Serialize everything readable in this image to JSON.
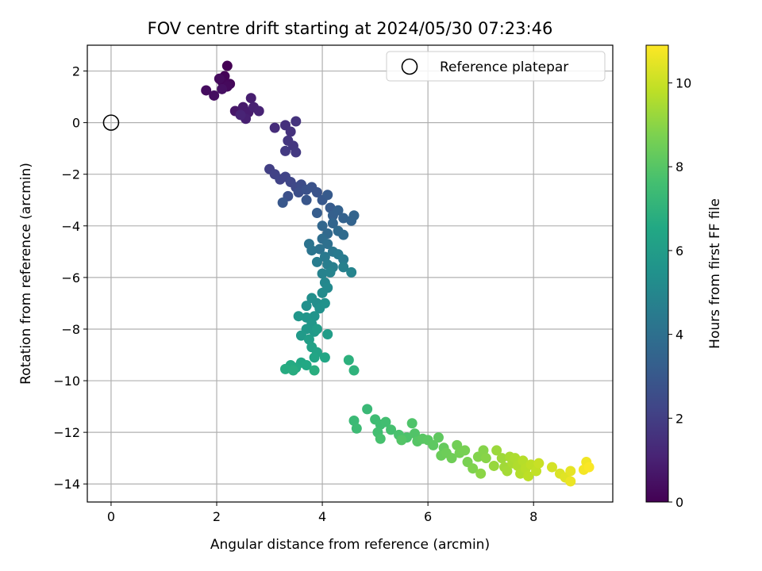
{
  "chart_data": {
    "type": "scatter",
    "title": "FOV centre drift starting at 2024/05/30 07:23:46",
    "xlabel": "Angular distance from reference (arcmin)",
    "ylabel": "Rotation from reference (arcmin)",
    "xlim": [
      -0.45,
      9.5
    ],
    "ylim": [
      -14.7,
      3.0
    ],
    "xticks": [
      0,
      2,
      4,
      6,
      8
    ],
    "yticks": [
      2,
      0,
      -2,
      -4,
      -6,
      -8,
      -10,
      -12,
      -14
    ],
    "grid": true,
    "legend": {
      "placement": "top-right",
      "entries": [
        "Reference platepar"
      ]
    },
    "reference_point": {
      "x": 0,
      "y": 0,
      "marker": "open-circle",
      "label": "Reference platepar"
    },
    "colorbar": {
      "label": "Hours from first FF file",
      "colormap": "viridis",
      "range": [
        0,
        10.9
      ],
      "ticks": [
        0,
        2,
        4,
        6,
        8,
        10
      ]
    },
    "points": [
      {
        "x": 2.2,
        "y": 2.2,
        "c": 0.0
      },
      {
        "x": 2.15,
        "y": 1.8,
        "c": 0.1
      },
      {
        "x": 2.1,
        "y": 1.6,
        "c": 0.15
      },
      {
        "x": 2.25,
        "y": 1.5,
        "c": 0.2
      },
      {
        "x": 2.2,
        "y": 1.4,
        "c": 0.25
      },
      {
        "x": 2.05,
        "y": 1.7,
        "c": 0.3
      },
      {
        "x": 1.8,
        "y": 1.25,
        "c": 0.35
      },
      {
        "x": 1.95,
        "y": 1.05,
        "c": 0.4
      },
      {
        "x": 2.1,
        "y": 1.3,
        "c": 0.45
      },
      {
        "x": 2.35,
        "y": 0.45,
        "c": 0.7
      },
      {
        "x": 2.5,
        "y": 0.6,
        "c": 0.8
      },
      {
        "x": 2.6,
        "y": 0.4,
        "c": 0.85
      },
      {
        "x": 2.65,
        "y": 0.95,
        "c": 0.9
      },
      {
        "x": 2.55,
        "y": 0.15,
        "c": 0.95
      },
      {
        "x": 2.7,
        "y": 0.6,
        "c": 1.0
      },
      {
        "x": 2.8,
        "y": 0.45,
        "c": 1.05
      },
      {
        "x": 2.45,
        "y": 0.3,
        "c": 1.1
      },
      {
        "x": 3.1,
        "y": -0.2,
        "c": 1.4
      },
      {
        "x": 3.3,
        "y": -0.1,
        "c": 1.5
      },
      {
        "x": 3.4,
        "y": -0.35,
        "c": 1.55
      },
      {
        "x": 3.5,
        "y": 0.05,
        "c": 1.6
      },
      {
        "x": 3.35,
        "y": -0.7,
        "c": 1.7
      },
      {
        "x": 3.45,
        "y": -0.9,
        "c": 1.75
      },
      {
        "x": 3.5,
        "y": -1.15,
        "c": 1.8
      },
      {
        "x": 3.3,
        "y": -1.1,
        "c": 1.85
      },
      {
        "x": 3.0,
        "y": -1.8,
        "c": 2.0
      },
      {
        "x": 3.1,
        "y": -2.0,
        "c": 2.1
      },
      {
        "x": 3.2,
        "y": -2.2,
        "c": 2.15
      },
      {
        "x": 3.3,
        "y": -2.1,
        "c": 2.2
      },
      {
        "x": 3.4,
        "y": -2.3,
        "c": 2.3
      },
      {
        "x": 3.5,
        "y": -2.5,
        "c": 2.4
      },
      {
        "x": 3.6,
        "y": -2.4,
        "c": 2.5
      },
      {
        "x": 3.55,
        "y": -2.7,
        "c": 2.6
      },
      {
        "x": 3.35,
        "y": -2.85,
        "c": 2.65
      },
      {
        "x": 3.7,
        "y": -2.6,
        "c": 2.7
      },
      {
        "x": 3.8,
        "y": -2.5,
        "c": 2.75
      },
      {
        "x": 3.9,
        "y": -2.7,
        "c": 2.8
      },
      {
        "x": 3.7,
        "y": -3.0,
        "c": 2.9
      },
      {
        "x": 3.25,
        "y": -3.1,
        "c": 2.95
      },
      {
        "x": 4.0,
        "y": -3.0,
        "c": 3.0
      },
      {
        "x": 4.1,
        "y": -2.8,
        "c": 3.05
      },
      {
        "x": 4.15,
        "y": -3.3,
        "c": 3.1
      },
      {
        "x": 3.9,
        "y": -3.5,
        "c": 3.2
      },
      {
        "x": 4.2,
        "y": -3.6,
        "c": 3.3
      },
      {
        "x": 4.3,
        "y": -3.4,
        "c": 3.35
      },
      {
        "x": 4.4,
        "y": -3.7,
        "c": 3.4
      },
      {
        "x": 4.55,
        "y": -3.8,
        "c": 3.45
      },
      {
        "x": 4.6,
        "y": -3.6,
        "c": 3.5
      },
      {
        "x": 4.2,
        "y": -3.9,
        "c": 3.55
      },
      {
        "x": 4.0,
        "y": -4.0,
        "c": 3.6
      },
      {
        "x": 4.1,
        "y": -4.3,
        "c": 3.7
      },
      {
        "x": 4.3,
        "y": -4.2,
        "c": 3.75
      },
      {
        "x": 4.4,
        "y": -4.35,
        "c": 3.8
      },
      {
        "x": 4.0,
        "y": -4.5,
        "c": 3.9
      },
      {
        "x": 4.1,
        "y": -4.7,
        "c": 4.0
      },
      {
        "x": 3.95,
        "y": -4.9,
        "c": 4.1
      },
      {
        "x": 3.75,
        "y": -4.7,
        "c": 4.15
      },
      {
        "x": 3.8,
        "y": -4.95,
        "c": 4.2
      },
      {
        "x": 4.2,
        "y": -5.0,
        "c": 4.3
      },
      {
        "x": 4.05,
        "y": -5.2,
        "c": 4.4
      },
      {
        "x": 4.3,
        "y": -5.1,
        "c": 4.45
      },
      {
        "x": 4.4,
        "y": -5.3,
        "c": 4.5
      },
      {
        "x": 3.9,
        "y": -5.4,
        "c": 4.55
      },
      {
        "x": 4.1,
        "y": -5.5,
        "c": 4.6
      },
      {
        "x": 4.2,
        "y": -5.6,
        "c": 4.65
      },
      {
        "x": 4.4,
        "y": -5.6,
        "c": 4.7
      },
      {
        "x": 4.0,
        "y": -5.85,
        "c": 4.8
      },
      {
        "x": 4.15,
        "y": -5.8,
        "c": 4.85
      },
      {
        "x": 4.55,
        "y": -5.8,
        "c": 4.9
      },
      {
        "x": 4.05,
        "y": -6.2,
        "c": 5.0
      },
      {
        "x": 4.1,
        "y": -6.4,
        "c": 5.1
      },
      {
        "x": 4.0,
        "y": -6.6,
        "c": 5.2
      },
      {
        "x": 3.9,
        "y": -7.0,
        "c": 5.3
      },
      {
        "x": 3.8,
        "y": -6.8,
        "c": 5.35
      },
      {
        "x": 3.7,
        "y": -7.1,
        "c": 5.4
      },
      {
        "x": 3.95,
        "y": -7.2,
        "c": 5.45
      },
      {
        "x": 4.05,
        "y": -7.0,
        "c": 5.5
      },
      {
        "x": 3.85,
        "y": -7.5,
        "c": 5.6
      },
      {
        "x": 3.7,
        "y": -7.55,
        "c": 5.65
      },
      {
        "x": 3.55,
        "y": -7.5,
        "c": 5.7
      },
      {
        "x": 3.8,
        "y": -7.8,
        "c": 5.75
      },
      {
        "x": 3.7,
        "y": -8.0,
        "c": 5.8
      },
      {
        "x": 3.85,
        "y": -8.1,
        "c": 5.85
      },
      {
        "x": 3.6,
        "y": -8.25,
        "c": 5.9
      },
      {
        "x": 3.9,
        "y": -8.0,
        "c": 5.95
      },
      {
        "x": 4.1,
        "y": -8.2,
        "c": 6.0
      },
      {
        "x": 3.75,
        "y": -8.4,
        "c": 6.05
      },
      {
        "x": 3.8,
        "y": -8.7,
        "c": 6.2
      },
      {
        "x": 3.9,
        "y": -8.9,
        "c": 6.3
      },
      {
        "x": 3.85,
        "y": -9.1,
        "c": 6.4
      },
      {
        "x": 4.05,
        "y": -9.1,
        "c": 6.45
      },
      {
        "x": 3.6,
        "y": -9.3,
        "c": 6.5
      },
      {
        "x": 3.7,
        "y": -9.4,
        "c": 6.55
      },
      {
        "x": 3.5,
        "y": -9.5,
        "c": 6.6
      },
      {
        "x": 3.4,
        "y": -9.4,
        "c": 6.65
      },
      {
        "x": 3.3,
        "y": -9.55,
        "c": 6.7
      },
      {
        "x": 3.45,
        "y": -9.6,
        "c": 6.75
      },
      {
        "x": 3.85,
        "y": -9.6,
        "c": 6.8
      },
      {
        "x": 4.5,
        "y": -9.2,
        "c": 6.9
      },
      {
        "x": 4.6,
        "y": -9.6,
        "c": 7.0
      },
      {
        "x": 4.85,
        "y": -11.1,
        "c": 7.3
      },
      {
        "x": 4.6,
        "y": -11.55,
        "c": 7.35
      },
      {
        "x": 4.65,
        "y": -11.85,
        "c": 7.4
      },
      {
        "x": 5.0,
        "y": -11.5,
        "c": 7.45
      },
      {
        "x": 5.1,
        "y": -11.7,
        "c": 7.5
      },
      {
        "x": 5.2,
        "y": -11.6,
        "c": 7.55
      },
      {
        "x": 5.05,
        "y": -12.0,
        "c": 7.6
      },
      {
        "x": 5.3,
        "y": -11.9,
        "c": 7.65
      },
      {
        "x": 5.1,
        "y": -12.25,
        "c": 7.7
      },
      {
        "x": 5.45,
        "y": -12.1,
        "c": 7.75
      },
      {
        "x": 5.6,
        "y": -12.2,
        "c": 7.8
      },
      {
        "x": 5.7,
        "y": -11.65,
        "c": 7.85
      },
      {
        "x": 5.75,
        "y": -12.05,
        "c": 7.9
      },
      {
        "x": 5.5,
        "y": -12.3,
        "c": 7.95
      },
      {
        "x": 5.8,
        "y": -12.35,
        "c": 8.0
      },
      {
        "x": 5.9,
        "y": -12.25,
        "c": 8.05
      },
      {
        "x": 6.0,
        "y": -12.3,
        "c": 8.1
      },
      {
        "x": 6.1,
        "y": -12.5,
        "c": 8.15
      },
      {
        "x": 6.2,
        "y": -12.2,
        "c": 8.2
      },
      {
        "x": 6.3,
        "y": -12.6,
        "c": 8.3
      },
      {
        "x": 6.25,
        "y": -12.9,
        "c": 8.4
      },
      {
        "x": 6.35,
        "y": -12.8,
        "c": 8.45
      },
      {
        "x": 6.45,
        "y": -13.0,
        "c": 8.5
      },
      {
        "x": 6.55,
        "y": -12.5,
        "c": 8.55
      },
      {
        "x": 6.6,
        "y": -12.8,
        "c": 8.6
      },
      {
        "x": 6.7,
        "y": -12.7,
        "c": 8.65
      },
      {
        "x": 6.75,
        "y": -13.15,
        "c": 8.7
      },
      {
        "x": 6.85,
        "y": -13.4,
        "c": 8.8
      },
      {
        "x": 6.95,
        "y": -12.95,
        "c": 8.85
      },
      {
        "x": 7.05,
        "y": -12.7,
        "c": 8.9
      },
      {
        "x": 7.1,
        "y": -13.0,
        "c": 8.95
      },
      {
        "x": 7.0,
        "y": -13.6,
        "c": 9.0
      },
      {
        "x": 7.25,
        "y": -13.3,
        "c": 9.2
      },
      {
        "x": 7.3,
        "y": -12.7,
        "c": 9.25
      },
      {
        "x": 7.4,
        "y": -13.0,
        "c": 9.3
      },
      {
        "x": 7.45,
        "y": -13.35,
        "c": 9.35
      },
      {
        "x": 7.5,
        "y": -13.5,
        "c": 9.4
      },
      {
        "x": 7.55,
        "y": -12.95,
        "c": 9.45
      },
      {
        "x": 7.6,
        "y": -13.2,
        "c": 9.5
      },
      {
        "x": 7.65,
        "y": -13.0,
        "c": 9.55
      },
      {
        "x": 7.7,
        "y": -13.3,
        "c": 9.6
      },
      {
        "x": 7.75,
        "y": -13.6,
        "c": 9.65
      },
      {
        "x": 7.8,
        "y": -13.1,
        "c": 9.7
      },
      {
        "x": 7.85,
        "y": -13.4,
        "c": 9.75
      },
      {
        "x": 7.9,
        "y": -13.7,
        "c": 9.8
      },
      {
        "x": 7.95,
        "y": -13.25,
        "c": 9.85
      },
      {
        "x": 8.05,
        "y": -13.5,
        "c": 9.9
      },
      {
        "x": 8.1,
        "y": -13.2,
        "c": 10.0
      },
      {
        "x": 8.35,
        "y": -13.35,
        "c": 10.2
      },
      {
        "x": 8.5,
        "y": -13.6,
        "c": 10.3
      },
      {
        "x": 8.6,
        "y": -13.75,
        "c": 10.4
      },
      {
        "x": 8.7,
        "y": -13.5,
        "c": 10.5
      },
      {
        "x": 8.7,
        "y": -13.9,
        "c": 10.6
      },
      {
        "x": 9.0,
        "y": -13.15,
        "c": 10.7
      },
      {
        "x": 8.95,
        "y": -13.45,
        "c": 10.75
      },
      {
        "x": 9.05,
        "y": -13.35,
        "c": 10.85
      }
    ]
  }
}
